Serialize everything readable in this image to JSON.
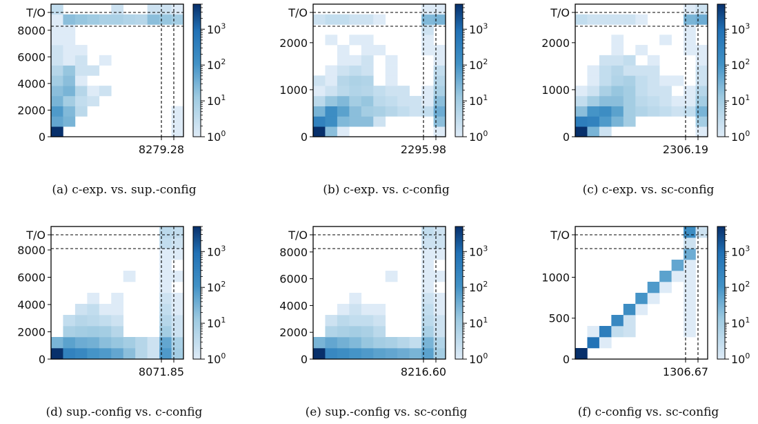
{
  "colorbar": {
    "ticks": [
      {
        "exp": "0",
        "value": 1
      },
      {
        "exp": "1",
        "value": 10
      },
      {
        "exp": "2",
        "value": 100
      },
      {
        "exp": "3",
        "value": 1000
      }
    ],
    "scale": "log",
    "max_value": 5000,
    "color_low": "#deebf7",
    "color_high": "#08306b"
  },
  "timeout_label": "T/O",
  "chart_data": [
    {
      "type": "heatmap",
      "caption": "(a) c-exp. vs. sup.-config",
      "y_ticks": [
        "0",
        "2000",
        "4000",
        "6000",
        "8000"
      ],
      "y_tick_values": [
        0,
        2000,
        4000,
        6000,
        8000
      ],
      "ylim": [
        0,
        8300
      ],
      "x_threshold_label": "8279.28",
      "grid": [
        [
          5000,
          0,
          0,
          0,
          0,
          0,
          0,
          0,
          0,
          0,
          1
        ],
        [
          50,
          30,
          0,
          0,
          0,
          0,
          0,
          0,
          0,
          0,
          1
        ],
        [
          80,
          25,
          4,
          0,
          0,
          0,
          0,
          0,
          0,
          0,
          1
        ],
        [
          30,
          10,
          3,
          2,
          0,
          0,
          0,
          0,
          0,
          0,
          0
        ],
        [
          20,
          30,
          5,
          1,
          2,
          0,
          0,
          0,
          0,
          0,
          0
        ],
        [
          10,
          20,
          1,
          0,
          0,
          0,
          0,
          0,
          0,
          0,
          0
        ],
        [
          5,
          15,
          2,
          2,
          0,
          0,
          0,
          0,
          0,
          0,
          0
        ],
        [
          2,
          1,
          2,
          0,
          1,
          0,
          0,
          0,
          0,
          0,
          0
        ],
        [
          2,
          1,
          1,
          0,
          0,
          0,
          0,
          0,
          0,
          0,
          0
        ],
        [
          1,
          1,
          0,
          0,
          0,
          0,
          0,
          0,
          0,
          0,
          0
        ],
        [
          1,
          1,
          0,
          0,
          0,
          0,
          0,
          0,
          0,
          0,
          0
        ],
        [
          1,
          20,
          15,
          12,
          8,
          8,
          6,
          5,
          20,
          15,
          10
        ],
        [
          3,
          0,
          0,
          0,
          0,
          2,
          0,
          0,
          2,
          2,
          1
        ]
      ]
    },
    {
      "type": "heatmap",
      "caption": "(b) c-exp. vs. c-config",
      "y_ticks": [
        "0",
        "1000",
        "2000"
      ],
      "y_tick_values": [
        0,
        1000,
        2000
      ],
      "ylim": [
        0,
        2350
      ],
      "x_threshold_label": "2295.98",
      "grid": [
        [
          5000,
          20,
          1,
          0,
          0,
          0,
          0,
          0,
          0,
          0,
          1
        ],
        [
          300,
          150,
          25,
          20,
          20,
          2,
          0,
          0,
          0,
          0,
          20
        ],
        [
          30,
          150,
          60,
          20,
          10,
          8,
          5,
          3,
          2,
          3,
          40
        ],
        [
          4,
          15,
          25,
          10,
          15,
          4,
          3,
          2,
          2,
          1,
          20
        ],
        [
          1,
          2,
          4,
          6,
          5,
          3,
          2,
          2,
          0,
          1,
          8
        ],
        [
          2,
          1,
          5,
          7,
          6,
          0,
          1,
          0,
          0,
          0,
          5
        ],
        [
          0,
          1,
          2,
          3,
          2,
          0,
          1,
          0,
          0,
          0,
          3
        ],
        [
          0,
          0,
          1,
          1,
          2,
          0,
          1,
          0,
          0,
          0,
          1
        ],
        [
          0,
          0,
          1,
          0,
          1,
          1,
          0,
          0,
          0,
          1,
          1
        ],
        [
          0,
          1,
          0,
          1,
          1,
          0,
          0,
          0,
          0,
          1,
          0
        ],
        [
          0,
          0,
          0,
          0,
          0,
          0,
          0,
          0,
          0,
          2,
          0
        ],
        [
          2,
          3,
          3,
          2,
          2,
          1,
          0,
          0,
          0,
          25,
          30
        ],
        [
          0,
          0,
          0,
          0,
          0,
          0,
          0,
          0,
          0,
          1,
          1
        ]
      ]
    },
    {
      "type": "heatmap",
      "caption": "(c) c-exp. vs. sc-config",
      "y_ticks": [
        "0",
        "1000",
        "2000"
      ],
      "y_tick_values": [
        0,
        1000,
        2000
      ],
      "ylim": [
        0,
        2350
      ],
      "x_threshold_label": "2306.19",
      "grid": [
        [
          5000,
          30,
          2,
          0,
          0,
          0,
          0,
          0,
          0,
          0,
          1
        ],
        [
          400,
          300,
          80,
          30,
          10,
          0,
          0,
          0,
          0,
          0,
          10
        ],
        [
          20,
          100,
          150,
          60,
          10,
          6,
          4,
          3,
          2,
          3,
          30
        ],
        [
          3,
          10,
          20,
          20,
          10,
          4,
          3,
          2,
          1,
          1,
          10
        ],
        [
          1,
          2,
          8,
          15,
          10,
          3,
          2,
          2,
          0,
          1,
          5
        ],
        [
          0,
          1,
          3,
          6,
          8,
          3,
          2,
          1,
          1,
          0,
          2
        ],
        [
          0,
          1,
          3,
          5,
          2,
          2,
          2,
          0,
          0,
          0,
          2
        ],
        [
          0,
          0,
          2,
          2,
          3,
          0,
          1,
          0,
          0,
          0,
          1
        ],
        [
          0,
          0,
          0,
          1,
          0,
          1,
          0,
          0,
          0,
          1,
          1
        ],
        [
          0,
          0,
          0,
          1,
          0,
          0,
          0,
          1,
          0,
          1,
          0
        ],
        [
          0,
          0,
          0,
          0,
          0,
          0,
          0,
          0,
          0,
          1,
          0
        ],
        [
          3,
          2,
          2,
          2,
          2,
          1,
          0,
          0,
          0,
          30,
          40
        ],
        [
          0,
          0,
          0,
          0,
          0,
          0,
          0,
          0,
          0,
          1,
          2
        ]
      ]
    },
    {
      "type": "heatmap",
      "caption": "(d) sup.-config vs. c-config",
      "y_ticks": [
        "0",
        "2000",
        "4000",
        "6000",
        "8000"
      ],
      "y_tick_values": [
        0,
        2000,
        4000,
        6000,
        8000
      ],
      "ylim": [
        0,
        8100
      ],
      "x_threshold_label": "8071.85",
      "grid": [
        [
          5000,
          300,
          200,
          100,
          80,
          50,
          20,
          5,
          2,
          80,
          10
        ],
        [
          30,
          60,
          40,
          35,
          20,
          15,
          10,
          5,
          2,
          50,
          8
        ],
        [
          0,
          8,
          10,
          12,
          10,
          5,
          0,
          0,
          0,
          10,
          2
        ],
        [
          0,
          3,
          5,
          4,
          3,
          2,
          0,
          0,
          0,
          5,
          2
        ],
        [
          0,
          0,
          2,
          3,
          1,
          1,
          0,
          0,
          0,
          3,
          1
        ],
        [
          0,
          0,
          0,
          1,
          0,
          1,
          0,
          0,
          0,
          2,
          1
        ],
        [
          0,
          0,
          0,
          0,
          0,
          0,
          0,
          0,
          0,
          1,
          0
        ],
        [
          0,
          0,
          0,
          0,
          0,
          0,
          1,
          0,
          0,
          1,
          1
        ],
        [
          0,
          0,
          0,
          0,
          0,
          0,
          0,
          0,
          0,
          1,
          0
        ],
        [
          0,
          0,
          0,
          0,
          0,
          0,
          0,
          0,
          0,
          1,
          1
        ],
        [
          0,
          0,
          0,
          0,
          0,
          0,
          0,
          0,
          0,
          3,
          2
        ],
        [
          0,
          0,
          0,
          0,
          0,
          0,
          0,
          0,
          0,
          4,
          3
        ]
      ]
    },
    {
      "type": "heatmap",
      "caption": "(e) sup.-config vs. sc-config",
      "y_ticks": [
        "0",
        "2000",
        "4000",
        "6000",
        "8000"
      ],
      "y_tick_values": [
        0,
        2000,
        4000,
        6000,
        8000
      ],
      "ylim": [
        0,
        8250
      ],
      "x_threshold_label": "8216.60",
      "grid": [
        [
          5000,
          200,
          150,
          100,
          80,
          60,
          50,
          40,
          30,
          60,
          10
        ],
        [
          30,
          50,
          35,
          25,
          15,
          10,
          8,
          5,
          3,
          30,
          6
        ],
        [
          0,
          6,
          8,
          10,
          8,
          4,
          0,
          0,
          0,
          8,
          2
        ],
        [
          0,
          2,
          4,
          3,
          3,
          2,
          0,
          0,
          0,
          4,
          2
        ],
        [
          0,
          0,
          1,
          2,
          1,
          1,
          0,
          0,
          0,
          3,
          1
        ],
        [
          0,
          0,
          0,
          1,
          0,
          0,
          0,
          0,
          0,
          2,
          1
        ],
        [
          0,
          0,
          0,
          0,
          0,
          0,
          0,
          0,
          0,
          1,
          0
        ],
        [
          0,
          0,
          0,
          0,
          0,
          0,
          1,
          0,
          0,
          1,
          1
        ],
        [
          0,
          0,
          0,
          0,
          0,
          0,
          0,
          0,
          0,
          1,
          0
        ],
        [
          0,
          0,
          0,
          0,
          0,
          0,
          0,
          0,
          0,
          1,
          1
        ],
        [
          0,
          0,
          0,
          0,
          0,
          0,
          0,
          0,
          0,
          2,
          2
        ],
        [
          0,
          0,
          0,
          0,
          0,
          0,
          0,
          0,
          0,
          3,
          2
        ]
      ]
    },
    {
      "type": "heatmap",
      "caption": "(f) c-config vs. sc-config",
      "y_ticks": [
        "0",
        "500",
        "1000"
      ],
      "y_tick_values": [
        0,
        500,
        1000
      ],
      "ylim": [
        0,
        1350
      ],
      "x_threshold_label": "1306.67",
      "grid": [
        [
          5000,
          0,
          0,
          0,
          0,
          0,
          0,
          0,
          0,
          0,
          0
        ],
        [
          0,
          800,
          1,
          0,
          0,
          0,
          0,
          0,
          0,
          0,
          0
        ],
        [
          0,
          1,
          400,
          3,
          2,
          0,
          0,
          0,
          0,
          1,
          0
        ],
        [
          0,
          0,
          0,
          200,
          2,
          0,
          0,
          0,
          0,
          1,
          0
        ],
        [
          0,
          0,
          0,
          0,
          150,
          1,
          0,
          0,
          0,
          1,
          0
        ],
        [
          0,
          0,
          0,
          0,
          0,
          100,
          1,
          0,
          0,
          1,
          0
        ],
        [
          0,
          0,
          0,
          0,
          0,
          0,
          80,
          1,
          0,
          1,
          0
        ],
        [
          0,
          0,
          0,
          0,
          0,
          0,
          0,
          60,
          1,
          1,
          0
        ],
        [
          0,
          0,
          0,
          0,
          0,
          0,
          0,
          0,
          50,
          1,
          0
        ],
        [
          0,
          0,
          0,
          0,
          0,
          0,
          0,
          0,
          0,
          40,
          0
        ],
        [
          0,
          0,
          0,
          0,
          0,
          0,
          0,
          0,
          0,
          2,
          0
        ],
        [
          0,
          0,
          0,
          0,
          0,
          0,
          0,
          0,
          0,
          150,
          2
        ]
      ]
    }
  ]
}
